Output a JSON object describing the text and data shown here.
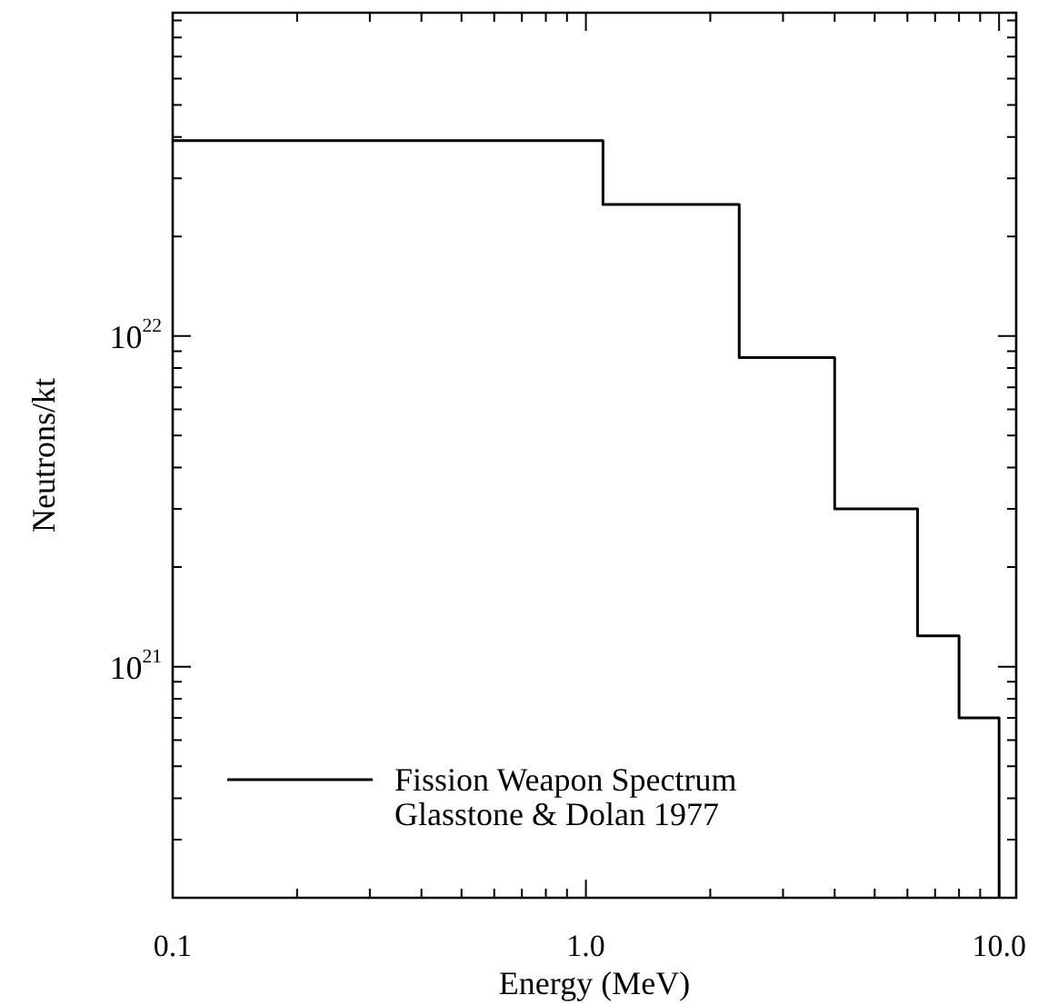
{
  "chart_data": {
    "type": "histogram",
    "xlabel": "Energy (MeV)",
    "ylabel": "Neutrons/kt",
    "log": "xy",
    "legend": "bottom left",
    "bins": [
      0.1,
      1.1,
      2.35,
      4,
      6.35,
      8,
      10
    ],
    "series": [
      {
        "name": "Fission Weapon Spectrum\nGlasstone & Dolan 1977",
        "color": "#000000",
        "values": [
          3.9e+22,
          2.5e+22,
          8.6e+21,
          3e+21,
          1.24e+21,
          7e+20
        ]
      }
    ],
    "xlim": [
      0.1,
      11
    ],
    "ylim": [
      2e+20,
      9.5e+22
    ],
    "xticks": [
      {
        "value": 0.1,
        "label": "0.1"
      },
      {
        "value": 0.2,
        "label": null
      },
      {
        "value": 0.3,
        "label": null
      },
      {
        "value": 0.4,
        "label": null
      },
      {
        "value": 0.5,
        "label": null
      },
      {
        "value": 0.6,
        "label": null
      },
      {
        "value": 0.7,
        "label": null
      },
      {
        "value": 0.8,
        "label": null
      },
      {
        "value": 0.9,
        "label": null
      },
      {
        "value": 1,
        "label": "1.0"
      },
      {
        "value": 2,
        "label": null
      },
      {
        "value": 3,
        "label": null
      },
      {
        "value": 4,
        "label": null
      },
      {
        "value": 5,
        "label": null
      },
      {
        "value": 6,
        "label": null
      },
      {
        "value": 7,
        "label": null
      },
      {
        "value": 8,
        "label": null
      },
      {
        "value": 9,
        "label": null
      },
      {
        "value": 10,
        "label": "10.0"
      }
    ],
    "yticks": [
      {
        "value": 2e+20,
        "label": null
      },
      {
        "value": 3e+20,
        "label": null
      },
      {
        "value": 4e+20,
        "label": null
      },
      {
        "value": 5e+20,
        "label": null
      },
      {
        "value": 6e+20,
        "label": null
      },
      {
        "value": 7e+20,
        "label": null
      },
      {
        "value": 8e+20,
        "label": null
      },
      {
        "value": 9e+20,
        "label": null
      },
      {
        "value": 1e+21,
        "label": "10$^{21}$"
      },
      {
        "value": 2e+21,
        "label": null
      },
      {
        "value": 3e+21,
        "label": null
      },
      {
        "value": 4e+21,
        "label": null
      },
      {
        "value": 5e+21,
        "label": null
      },
      {
        "value": 6e+21,
        "label": null
      },
      {
        "value": 7e+21,
        "label": null
      },
      {
        "value": 8e+21,
        "label": null
      },
      {
        "value": 9e+21,
        "label": null
      },
      {
        "value": 1e+22,
        "label": "10$^{22}$"
      },
      {
        "value": 2e+22,
        "label": null
      },
      {
        "value": 3e+22,
        "label": null
      },
      {
        "value": 4e+22,
        "label": null
      },
      {
        "value": 5e+22,
        "label": null
      },
      {
        "value": 6e+22,
        "label": null
      },
      {
        "value": 7e+22,
        "label": null
      },
      {
        "value": 8e+22,
        "label": null
      },
      {
        "value": 9e+22,
        "label": null
      }
    ]
  }
}
